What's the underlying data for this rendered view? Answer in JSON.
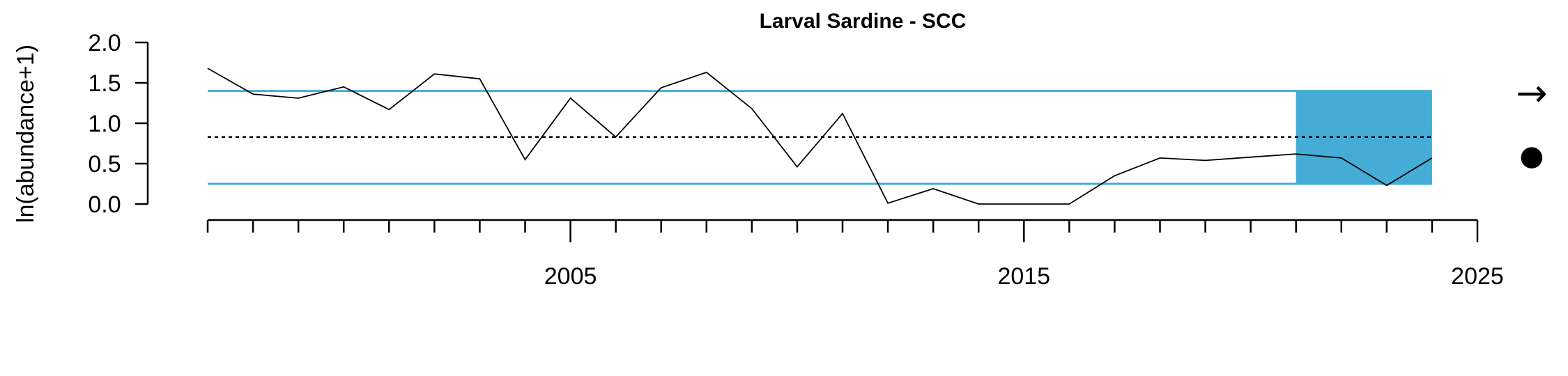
{
  "chart_data": {
    "type": "line",
    "title": "Larval Sardine - SCC",
    "xlabel": "",
    "ylabel": "ln(abundance+1)",
    "xlim": [
      1997,
      2025
    ],
    "ylim": [
      0,
      2
    ],
    "x_ticks_labeled": [
      2005,
      2015,
      2025
    ],
    "x_tick_labels": [
      "2005",
      "2015",
      "2025"
    ],
    "y_ticks": [
      0,
      0.5,
      1,
      1.5,
      2
    ],
    "y_tick_labels": [
      "0.0",
      "0.5",
      "1.0",
      "1.5",
      "2.0"
    ],
    "series": [
      {
        "x": [
          1997,
          1998,
          1999,
          2000,
          2001,
          2002,
          2003,
          2004,
          2005,
          2006,
          2007,
          2008,
          2009,
          2010,
          2011,
          2012,
          2013,
          2014,
          2015,
          2016,
          2017,
          2018,
          2019,
          2020,
          2021,
          2022,
          2023,
          2024
        ],
        "y": [
          1.68,
          1.36,
          1.31,
          1.45,
          1.17,
          1.61,
          1.55,
          0.55,
          1.31,
          0.83,
          1.44,
          1.63,
          1.18,
          0.46,
          1.12,
          0.01,
          0.19,
          0.0,
          0.0,
          0.0,
          0.35,
          0.57,
          0.54,
          0.58,
          0.62,
          0.57,
          0.23,
          0.57
        ]
      }
    ],
    "mean": 0.83,
    "upper_sd": 1.4,
    "lower_sd": 0.25,
    "recent_window": [
      2021,
      2024
    ],
    "colors": {
      "band": "#44acd6",
      "line": "#000000"
    },
    "trend_symbol": "→",
    "mean_symbol": "●"
  }
}
